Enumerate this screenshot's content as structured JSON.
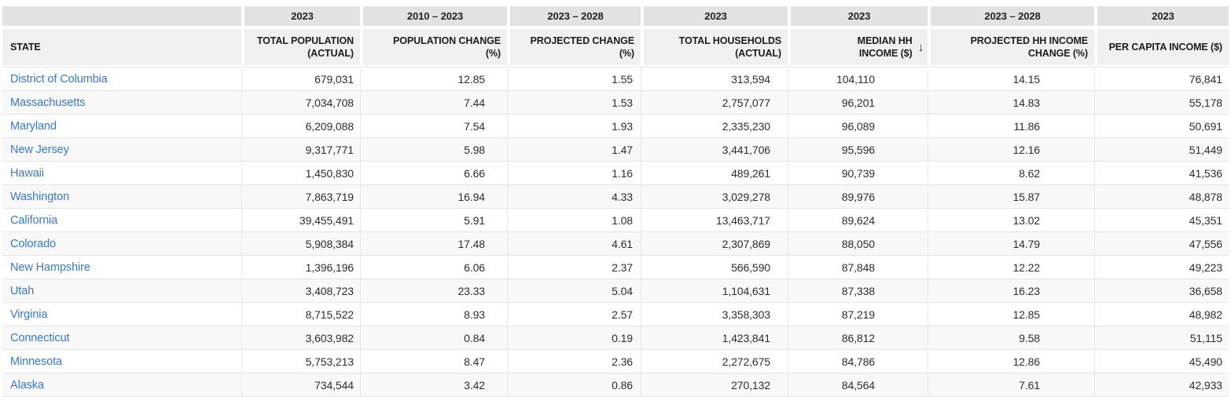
{
  "colors": {
    "link_blue": "#3a78c5",
    "header_period_bg": "#e2e2e2",
    "header_label_bg": "#f0f0f0",
    "row_stripe_bg": "#f8f8f8"
  },
  "icons": {
    "sort_descending": {
      "name": "sort-descending-icon",
      "glyph": "↓"
    }
  },
  "table": {
    "columns": [
      {
        "period": "",
        "line1": "STATE",
        "line2": ""
      },
      {
        "period": "2023",
        "line1": "TOTAL POPULATION",
        "line2": "(ACTUAL)"
      },
      {
        "period": "2010 – 2023",
        "line1": "POPULATION CHANGE",
        "line2": "(%)"
      },
      {
        "period": "2023 – 2028",
        "line1": "PROJECTED CHANGE",
        "line2": "(%)"
      },
      {
        "period": "2023",
        "line1": "TOTAL HOUSEHOLDS",
        "line2": "(ACTUAL)"
      },
      {
        "period": "2023",
        "line1": "MEDIAN HH",
        "line2": "INCOME ($)",
        "sort": "desc"
      },
      {
        "period": "2023 – 2028",
        "line1": "PROJECTED HH INCOME",
        "line2": "CHANGE (%)"
      },
      {
        "period": "2023",
        "line1": "PER CAPITA INCOME ($)",
        "line2": ""
      }
    ],
    "rows": [
      {
        "state": "District of Columbia",
        "values": [
          "679,031",
          "12.85",
          "1.55",
          "313,594",
          "104,110",
          "14.15",
          "76,841"
        ]
      },
      {
        "state": "Massachusetts",
        "values": [
          "7,034,708",
          "7.44",
          "1.53",
          "2,757,077",
          "96,201",
          "14.83",
          "55,178"
        ]
      },
      {
        "state": "Maryland",
        "values": [
          "6,209,088",
          "7.54",
          "1.93",
          "2,335,230",
          "96,089",
          "11.86",
          "50,691"
        ]
      },
      {
        "state": "New Jersey",
        "values": [
          "9,317,771",
          "5.98",
          "1.47",
          "3,441,706",
          "95,596",
          "12.16",
          "51,449"
        ]
      },
      {
        "state": "Hawaii",
        "values": [
          "1,450,830",
          "6.66",
          "1.16",
          "489,261",
          "90,739",
          "8.62",
          "41,536"
        ]
      },
      {
        "state": "Washington",
        "values": [
          "7,863,719",
          "16.94",
          "4.33",
          "3,029,278",
          "89,976",
          "15.87",
          "48,878"
        ]
      },
      {
        "state": "California",
        "values": [
          "39,455,491",
          "5.91",
          "1.08",
          "13,463,717",
          "89,624",
          "13.02",
          "45,351"
        ]
      },
      {
        "state": "Colorado",
        "values": [
          "5,908,384",
          "17.48",
          "4.61",
          "2,307,869",
          "88,050",
          "14.79",
          "47,556"
        ]
      },
      {
        "state": "New Hampshire",
        "values": [
          "1,396,196",
          "6.06",
          "2.37",
          "566,590",
          "87,848",
          "12.22",
          "49,223"
        ]
      },
      {
        "state": "Utah",
        "values": [
          "3,408,723",
          "23.33",
          "5.04",
          "1,104,631",
          "87,338",
          "16.23",
          "36,658"
        ]
      },
      {
        "state": "Virginia",
        "values": [
          "8,715,522",
          "8.93",
          "2.57",
          "3,358,303",
          "87,219",
          "12.85",
          "48,982"
        ]
      },
      {
        "state": "Connecticut",
        "values": [
          "3,603,982",
          "0.84",
          "0.19",
          "1,423,841",
          "86,812",
          "9.58",
          "51,115"
        ]
      },
      {
        "state": "Minnesota",
        "values": [
          "5,753,213",
          "8.47",
          "2.36",
          "2,272,675",
          "84,786",
          "12.86",
          "45,490"
        ]
      },
      {
        "state": "Alaska",
        "values": [
          "734,544",
          "3.42",
          "0.86",
          "270,132",
          "84,564",
          "7.61",
          "42,933"
        ]
      }
    ]
  }
}
